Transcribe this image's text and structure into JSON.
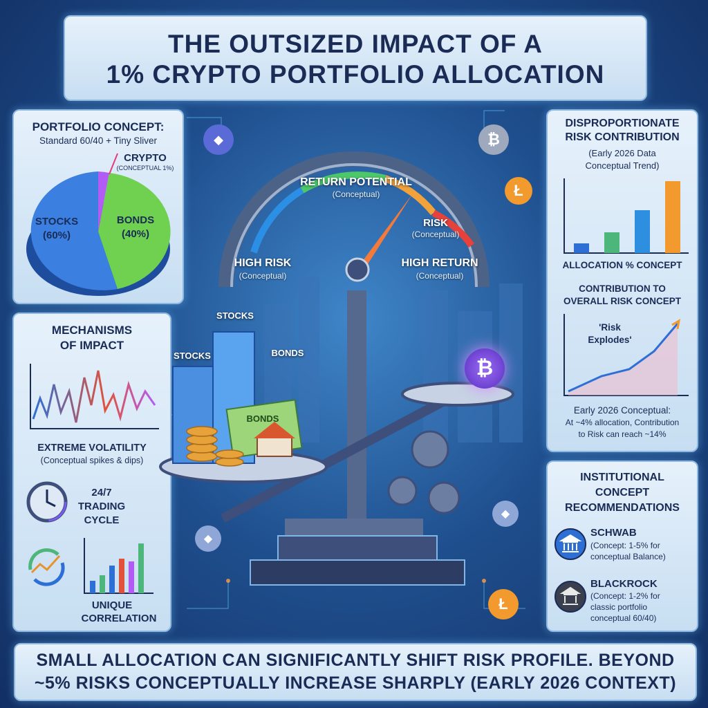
{
  "title": {
    "line1": "THE OUTSIZED IMPACT OF A",
    "line2": "1% CRYPTO PORTFOLIO ALLOCATION"
  },
  "portfolio": {
    "heading": "PORTFOLIO CONCEPT:",
    "subheading": "Standard 60/40 + Tiny Sliver",
    "crypto_label": "CRYPTO",
    "crypto_note": "(CONCEPTUAL 1%)",
    "stocks_label": "STOCKS",
    "stocks_pct": "(60%)",
    "bonds_label": "BONDS",
    "bonds_pct": "(40%)",
    "colors": {
      "stocks": "#3b7fe0",
      "bonds": "#6fd14f",
      "crypto": "#b35cf5"
    }
  },
  "mechanisms": {
    "heading_line1": "MECHANISMS",
    "heading_line2": "OF IMPACT",
    "volatility_title": "EXTREME VOLATILITY",
    "volatility_note": "(Conceptual spikes & dips)",
    "trading_line1": "24/7",
    "trading_line2": "TRADING",
    "trading_line3": "CYCLE",
    "correlation_line1": "UNIQUE",
    "correlation_line2": "CORRELATION"
  },
  "center": {
    "gauge_title": "RETURN POTENTIAL",
    "gauge_title_note": "(Conceptual)",
    "risk_label": "RISK",
    "risk_note": "(Conceptual)",
    "high_risk": "HIGH RISK",
    "high_risk_note": "(Conceptual)",
    "high_return": "HIGH RETURN",
    "high_return_note": "(Conceptual)",
    "stocks_tag1": "STOCKS",
    "stocks_tag2": "STOCKS",
    "bonds_tag": "BONDS",
    "bonds_bill": "BONDS",
    "bitcoin_symbol": "₿",
    "litecoin_symbol": "Ł",
    "ethereum_symbol": "◆"
  },
  "risk": {
    "heading_line1": "DISPROPORTIONATE",
    "heading_line2": "RISK CONTRIBUTION",
    "note_line1": "(Early 2026 Data",
    "note_line2": "Conceptual Trend)",
    "allocation_label": "ALLOCATION % CONCEPT",
    "contribution_line1": "CONTRIBUTION TO",
    "contribution_line2": "OVERALL RISK CONCEPT",
    "explodes_line1": "'Risk",
    "explodes_line2": "Explodes'",
    "early_line1": "Early 2026 Conceptual:",
    "early_line2": "At ~4% allocation, Contribution",
    "early_line3": "to Risk can reach ~14%"
  },
  "institutional": {
    "heading_line1": "INSTITUTIONAL",
    "heading_line2": "CONCEPT",
    "heading_line3": "RECOMMENDATIONS",
    "schwab_name": "SCHWAB",
    "schwab_line1": "(Concept: 1-5% for",
    "schwab_line2": "conceptual Balance)",
    "blackrock_name": "BLACKROCK",
    "blackrock_line1": "(Concept: 1-2% for",
    "blackrock_line2": "classic portfolio",
    "blackrock_line3": "conceptual 60/40)"
  },
  "footer": {
    "line1": "SMALL ALLOCATION CAN SIGNIFICANTLY SHIFT RISK PROFILE. BEYOND",
    "line2": "~5% RISKS CONCEPTUALLY INCREASE SHARPLY (EARLY 2026 CONTEXT)"
  }
}
